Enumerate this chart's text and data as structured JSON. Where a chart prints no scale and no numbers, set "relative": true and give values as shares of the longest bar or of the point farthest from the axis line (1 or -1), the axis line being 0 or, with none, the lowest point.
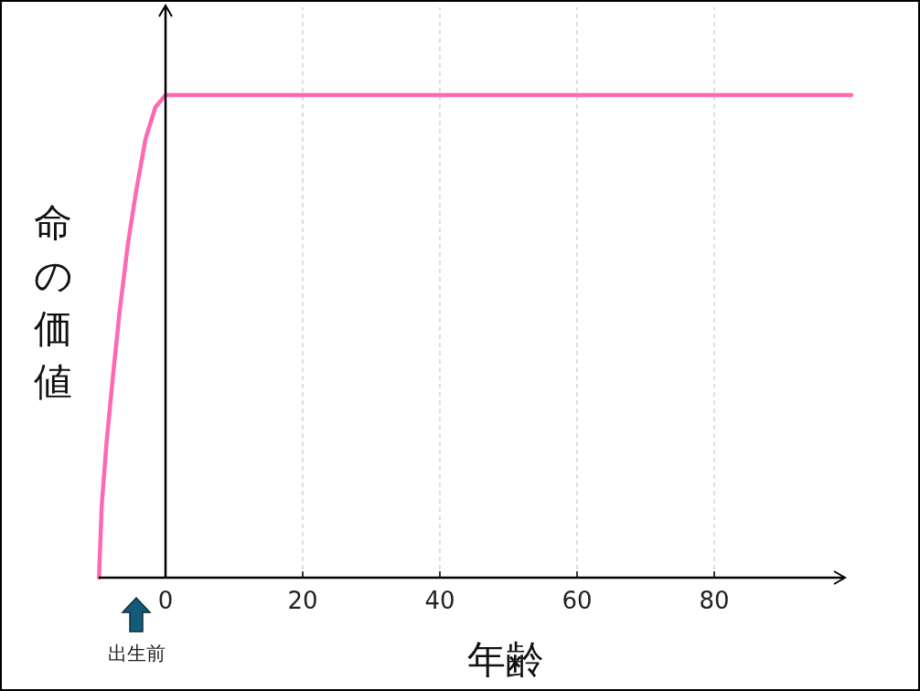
{
  "chart_data": {
    "type": "line",
    "relative": true,
    "xlabel": "年齢",
    "ylabel": "命の価値",
    "xlim": [
      -10,
      100
    ],
    "xticks": [
      0,
      20,
      40,
      60,
      80
    ],
    "grid": "x",
    "series": [
      {
        "color": "#ff69b4",
        "x": [
          -9.7,
          -9.3,
          -8.6,
          -7.65,
          -6.7,
          -5.5,
          -4.3,
          -2.9,
          -1.47,
          0,
          100
        ],
        "values": [
          0,
          0.15,
          0.28,
          0.42,
          0.55,
          0.69,
          0.8,
          0.91,
          0.975,
          1,
          1
        ]
      }
    ],
    "annotations": [
      "出生前"
    ]
  }
}
